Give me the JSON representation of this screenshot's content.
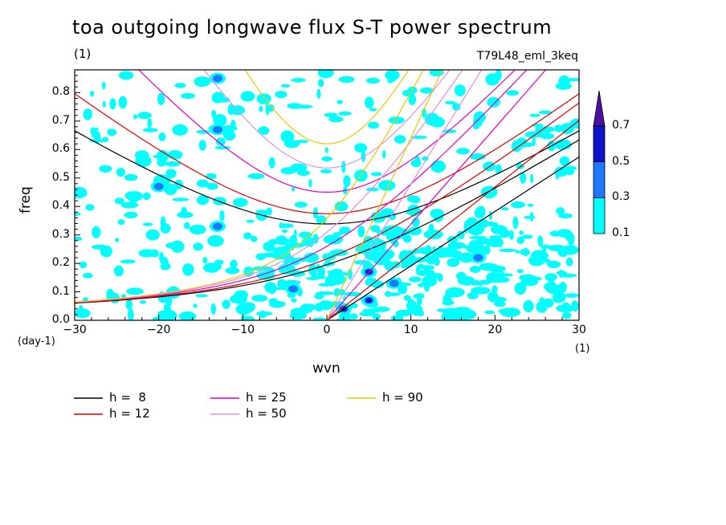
{
  "chart_data": {
    "type": "heatmap",
    "title": "toa outgoing longwave flux S-T power spectrum",
    "unit_label": "(1)",
    "experiment": "T79L48_eml_3keq",
    "xlabel": "wvn",
    "ylabel": "freq",
    "y_unit": "(day-1)",
    "x_unit": "(1)",
    "xlim": [
      -30,
      30
    ],
    "ylim": [
      0,
      0.88
    ],
    "xticks": [
      "-30",
      "-20",
      "-10",
      "0",
      "10",
      "20",
      "30"
    ],
    "yticks": [
      "0.0",
      "0.1",
      "0.2",
      "0.3",
      "0.4",
      "0.5",
      "0.6",
      "0.7",
      "0.8"
    ],
    "colorbar": {
      "levels": [
        "0.1",
        "0.3",
        "0.5",
        "0.7"
      ],
      "colors": [
        "#00ffff",
        "#1e78ff",
        "#0a14c8",
        "#4a10a0"
      ]
    },
    "dispersion_curves": [
      {
        "name": "h =  8",
        "h": 8,
        "color": "#000000"
      },
      {
        "name": "h = 12",
        "h": 12,
        "color": "#e00000"
      },
      {
        "name": "h = 25",
        "h": 25,
        "color": "#e000c8"
      },
      {
        "name": "h = 50",
        "h": 50,
        "color": "#e090e0"
      },
      {
        "name": "h = 90",
        "h": 90,
        "color": "#e8c800"
      }
    ],
    "hot_spots": [
      {
        "wvn": 5,
        "freq": 0.17,
        "level": 0.7
      },
      {
        "wvn": 5,
        "freq": 0.07,
        "level": 0.5
      },
      {
        "wvn": 2,
        "freq": 0.04,
        "level": 0.5
      },
      {
        "wvn": -13,
        "freq": 0.67,
        "level": 0.3
      },
      {
        "wvn": -13,
        "freq": 0.33,
        "level": 0.3
      },
      {
        "wvn": -20,
        "freq": 0.47,
        "level": 0.3
      },
      {
        "wvn": -4,
        "freq": 0.11,
        "level": 0.3
      },
      {
        "wvn": 18,
        "freq": 0.22,
        "level": 0.3
      },
      {
        "wvn": -13,
        "freq": 0.85,
        "level": 0.3
      },
      {
        "wvn": 8,
        "freq": 0.13,
        "level": 0.3
      }
    ]
  }
}
